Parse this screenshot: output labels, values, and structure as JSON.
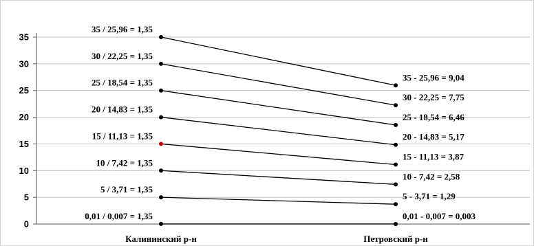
{
  "chart_data": {
    "type": "line",
    "categories": [
      "Калининский р-н",
      "Петровский р-н"
    ],
    "ylim": [
      0,
      35
    ],
    "yticks": [
      "0",
      "5",
      "10",
      "15",
      "20",
      "25",
      "30",
      "35"
    ],
    "grid": "horizontal",
    "series": [
      {
        "values": [
          0.01,
          0.007
        ],
        "left_label": "0,01 / 0,007 = 1,35",
        "right_label": "0,01 - 0,007 = 0,003"
      },
      {
        "values": [
          5,
          3.71
        ],
        "left_label": "5 / 3,71 = 1,35",
        "right_label": "5 - 3,71 = 1,29"
      },
      {
        "values": [
          10,
          7.42
        ],
        "left_label": "10 / 7,42 = 1,35",
        "right_label": "10 - 7,42 = 2,58"
      },
      {
        "values": [
          15,
          11.13
        ],
        "left_label": "15 / 11,13 = 1,35",
        "right_label": "15 - 11,13 = 3,87"
      },
      {
        "values": [
          20,
          14.83
        ],
        "left_label": "20 / 14,83 = 1,35",
        "right_label": "20 - 14,83 = 5,17"
      },
      {
        "values": [
          25,
          18.54
        ],
        "left_label": "25 / 18,54 = 1,35",
        "right_label": "25 - 18,54 = 6,46"
      },
      {
        "values": [
          30,
          22.25
        ],
        "left_label": "30 / 22,25 = 1,35",
        "right_label": "30 - 22,25 = 7,75"
      },
      {
        "values": [
          35,
          25.96
        ],
        "left_label": "35 / 25,96 = 1,35",
        "right_label": "35 - 25,96 = 9,04"
      }
    ],
    "colors": {
      "line": "#000000",
      "grid": "#bfbfbf",
      "marker_left_highlight": "#c00000"
    }
  }
}
